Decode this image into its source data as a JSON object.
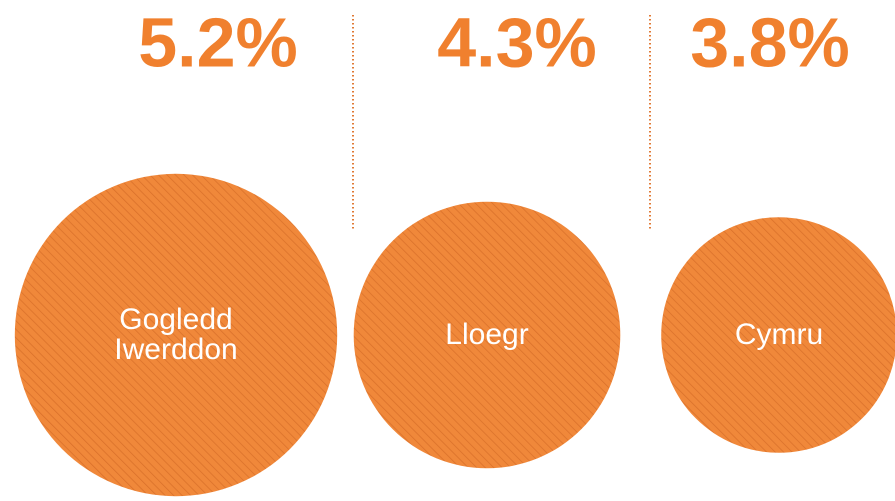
{
  "chart_data": {
    "type": "bubble",
    "categories": [
      "Gogledd Iwerddon",
      "Lloegr",
      "Cymru"
    ],
    "values": [
      5.2,
      4.3,
      3.8
    ],
    "value_labels": [
      "5.2%",
      "4.3%",
      "3.8%"
    ],
    "color": "#f0883a"
  }
}
